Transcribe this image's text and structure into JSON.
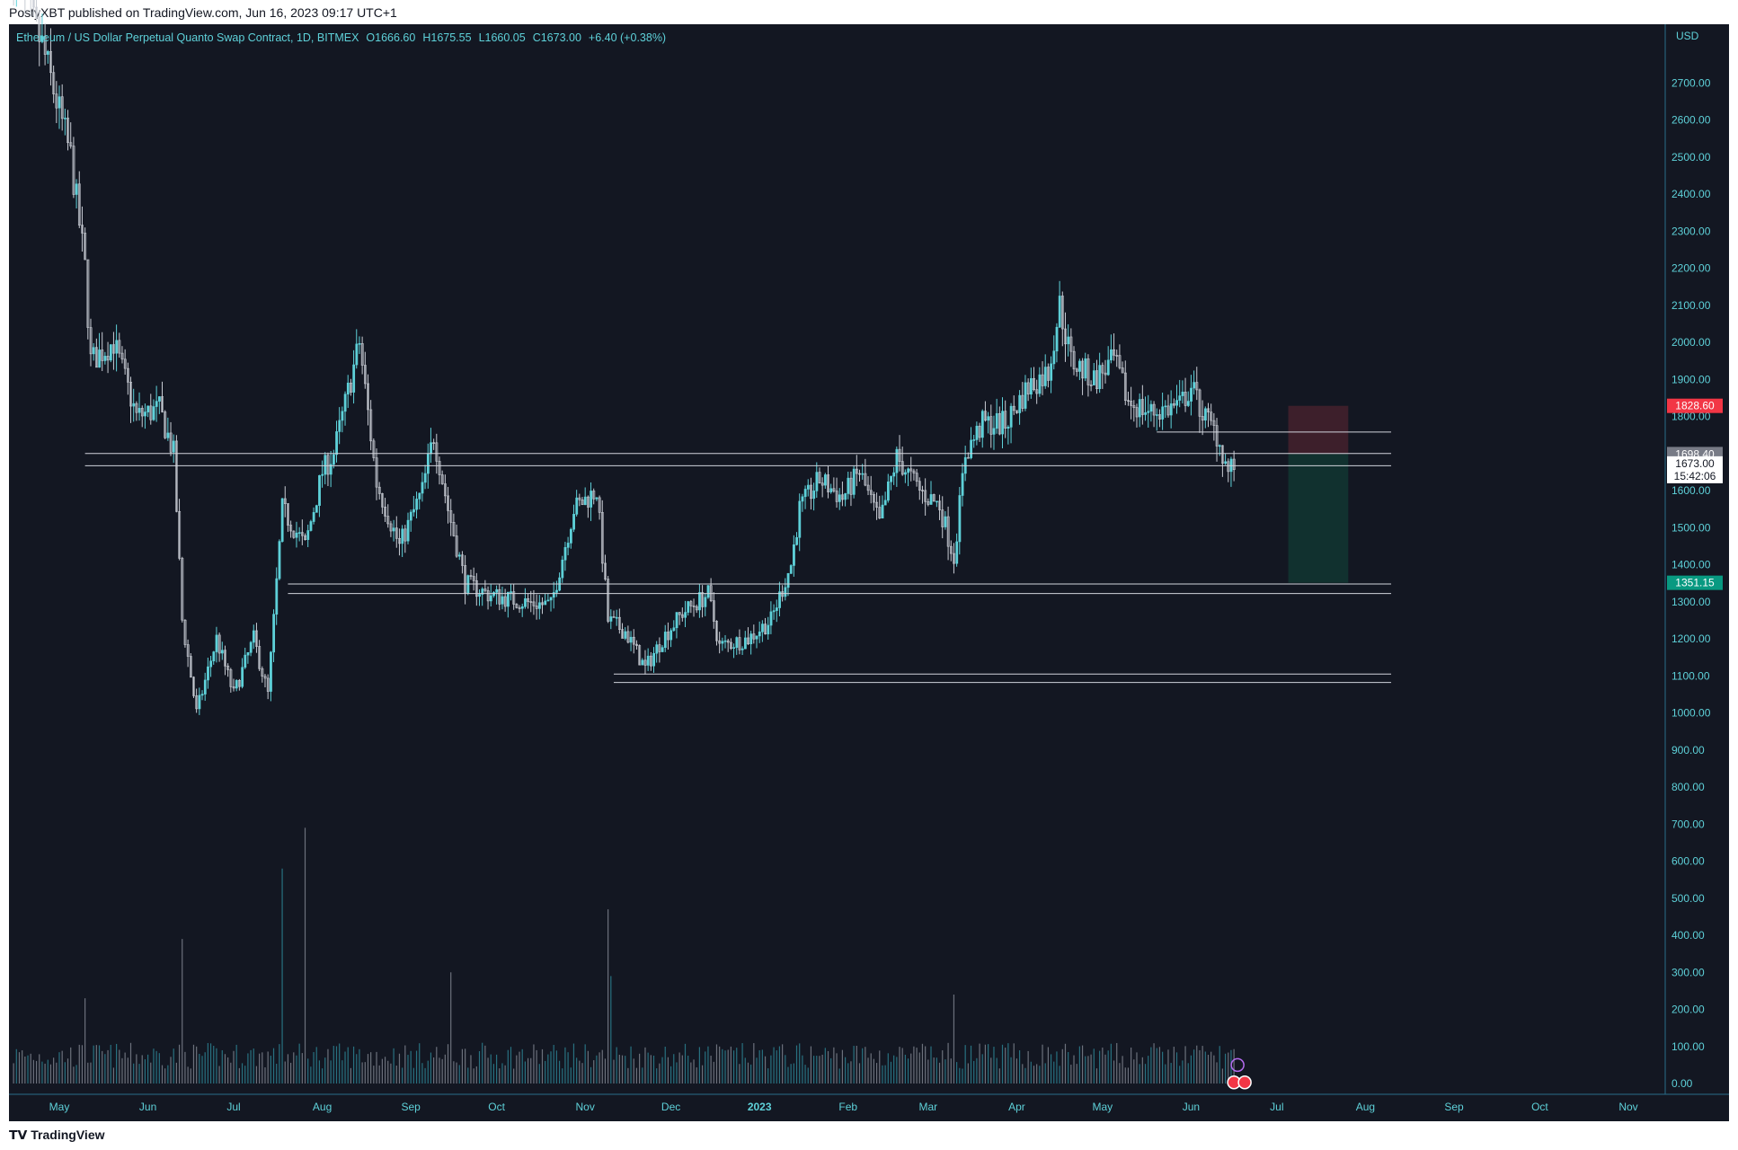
{
  "publish_bar": {
    "text": "PostyXBT published on TradingView.com, Jun 16, 2023 09:17 UTC+1"
  },
  "footer": {
    "logo_text": "TradingView"
  },
  "legend": {
    "symbol": "Ethereum / US Dollar Perpetual Quanto Swap Contract, 1D, BITMEX",
    "open": "O1666.60",
    "high": "H1675.55",
    "low": "L1660.05",
    "close": "C1673.00",
    "change": "+6.40 (+0.38%)"
  },
  "colors": {
    "background": "#131722",
    "frame": "#ffffff",
    "candle": "#5ed1d9",
    "candle_down": "#c8ccd4",
    "axis_text": "#5ed1d9",
    "hline": "#d1d4dc",
    "stop_zone": "#3d1f2b",
    "target_zone": "#11312f",
    "stop_tag": "#f23645",
    "target_tag": "#089981",
    "entry_tag": "#787b86"
  },
  "chart_data": {
    "type": "candlestick",
    "symbol": "Ethereum / US Dollar Perpetual Quanto Swap Contract",
    "interval": "1D",
    "exchange": "BITMEX",
    "y_unit": "USD",
    "y_range": [
      0,
      2850
    ],
    "y_ticks": [
      2700,
      2600,
      2500,
      2400,
      2300,
      2200,
      2100,
      2000,
      1900,
      1800,
      1600,
      1500,
      1400,
      1300,
      1200,
      1100,
      1000,
      900,
      800,
      700,
      600,
      500,
      400,
      300,
      200,
      100,
      0
    ],
    "y_tick_labels": [
      "2700.00",
      "2600.00",
      "2500.00",
      "2400.00",
      "2300.00",
      "2200.00",
      "2100.00",
      "2000.00",
      "1900.00",
      "1800.00",
      "1600.00",
      "1500.00",
      "1400.00",
      "1300.00",
      "1200.00",
      "1100.00",
      "1000.00",
      "900.00",
      "800.00",
      "700.00",
      "600.00",
      "500.00",
      "400.00",
      "300.00",
      "200.00",
      "100.00",
      "0.00"
    ],
    "x_labels": [
      "May",
      "Jun",
      "Jul",
      "Aug",
      "Sep",
      "Oct",
      "Nov",
      "Dec",
      "2023",
      "Feb",
      "Mar",
      "Apr",
      "May",
      "Jun",
      "Jul",
      "Aug",
      "Sep",
      "Oct",
      "Nov"
    ],
    "x_label_dates": [
      "2022-05-01",
      "2022-06-01",
      "2022-07-01",
      "2022-08-01",
      "2022-09-01",
      "2022-10-01",
      "2022-11-01",
      "2022-12-01",
      "2023-01-01",
      "2023-02-01",
      "2023-03-01",
      "2023-04-01",
      "2023-05-01",
      "2023-06-01",
      "2023-07-01",
      "2023-08-01",
      "2023-09-01",
      "2023-10-01",
      "2023-11-01"
    ],
    "x_range": [
      "2022-04-15",
      "2023-11-25"
    ],
    "price_path": [
      [
        "2022-04-15",
        2990
      ],
      [
        "2022-04-25",
        2800
      ],
      [
        "2022-05-05",
        2500
      ],
      [
        "2022-05-10",
        2200
      ],
      [
        "2022-05-12",
        1950
      ],
      [
        "2022-05-20",
        2000
      ],
      [
        "2022-05-28",
        1800
      ],
      [
        "2022-06-05",
        1820
      ],
      [
        "2022-06-10",
        1700
      ],
      [
        "2022-06-13",
        1250
      ],
      [
        "2022-06-18",
        1000
      ],
      [
        "2022-06-25",
        1200
      ],
      [
        "2022-07-01",
        1050
      ],
      [
        "2022-07-08",
        1200
      ],
      [
        "2022-07-13",
        1050
      ],
      [
        "2022-07-18",
        1550
      ],
      [
        "2022-07-26",
        1450
      ],
      [
        "2022-08-01",
        1650
      ],
      [
        "2022-08-05",
        1700
      ],
      [
        "2022-08-14",
        2000
      ],
      [
        "2022-08-20",
        1620
      ],
      [
        "2022-08-28",
        1450
      ],
      [
        "2022-09-05",
        1600
      ],
      [
        "2022-09-09",
        1750
      ],
      [
        "2022-09-14",
        1550
      ],
      [
        "2022-09-20",
        1350
      ],
      [
        "2022-09-28",
        1320
      ],
      [
        "2022-10-10",
        1300
      ],
      [
        "2022-10-20",
        1290
      ],
      [
        "2022-10-28",
        1550
      ],
      [
        "2022-11-05",
        1600
      ],
      [
        "2022-11-09",
        1250
      ],
      [
        "2022-11-15",
        1220
      ],
      [
        "2022-11-22",
        1120
      ],
      [
        "2022-11-28",
        1200
      ],
      [
        "2022-12-05",
        1270
      ],
      [
        "2022-12-14",
        1320
      ],
      [
        "2022-12-18",
        1180
      ],
      [
        "2022-12-28",
        1200
      ],
      [
        "2023-01-05",
        1250
      ],
      [
        "2023-01-12",
        1400
      ],
      [
        "2023-01-15",
        1550
      ],
      [
        "2023-01-22",
        1630
      ],
      [
        "2023-01-30",
        1580
      ],
      [
        "2023-02-05",
        1650
      ],
      [
        "2023-02-12",
        1510
      ],
      [
        "2023-02-18",
        1690
      ],
      [
        "2023-02-26",
        1600
      ],
      [
        "2023-03-05",
        1560
      ],
      [
        "2023-03-10",
        1420
      ],
      [
        "2023-03-14",
        1700
      ],
      [
        "2023-03-20",
        1780
      ],
      [
        "2023-03-28",
        1780
      ],
      [
        "2023-04-05",
        1880
      ],
      [
        "2023-04-12",
        1920
      ],
      [
        "2023-04-16",
        2100
      ],
      [
        "2023-04-20",
        1950
      ],
      [
        "2023-04-28",
        1900
      ],
      [
        "2023-05-05",
        1950
      ],
      [
        "2023-05-10",
        1840
      ],
      [
        "2023-05-18",
        1810
      ],
      [
        "2023-05-28",
        1830
      ],
      [
        "2023-06-01",
        1880
      ],
      [
        "2023-06-05",
        1810
      ],
      [
        "2023-06-10",
        1750
      ],
      [
        "2023-06-14",
        1650
      ],
      [
        "2023-06-16",
        1673
      ]
    ],
    "horizontal_levels": [
      {
        "from": "2022-05-10",
        "to": "2023-08-10",
        "y": 1700
      },
      {
        "from": "2022-05-10",
        "to": "2023-08-10",
        "y": 1667
      },
      {
        "from": "2023-05-20",
        "to": "2023-08-10",
        "y": 1758
      },
      {
        "from": "2022-07-20",
        "to": "2023-08-10",
        "y": 1348
      },
      {
        "from": "2022-07-20",
        "to": "2023-08-10",
        "y": 1322
      },
      {
        "from": "2022-11-11",
        "to": "2023-08-10",
        "y": 1105
      },
      {
        "from": "2022-11-11",
        "to": "2023-08-10",
        "y": 1082
      }
    ],
    "position": {
      "from": "2023-07-05",
      "to": "2023-07-26",
      "stop": 1828.6,
      "entry": 1698.4,
      "target": 1351.15,
      "stop_label": "1828.60",
      "entry_label": "1698.40",
      "target_label": "1351.15"
    },
    "last_price": {
      "value": 1673.0,
      "label": "1673.00",
      "countdown": "15:42:06"
    },
    "volume_scale": "same axis as price (0–700)",
    "volume_peaks": [
      [
        "2022-05-10",
        230
      ],
      [
        "2022-06-13",
        390
      ],
      [
        "2022-07-18",
        580
      ],
      [
        "2022-07-26",
        690
      ],
      [
        "2022-09-15",
        300
      ],
      [
        "2022-11-09",
        470
      ],
      [
        "2022-11-10",
        290
      ],
      [
        "2023-03-10",
        240
      ]
    ]
  }
}
